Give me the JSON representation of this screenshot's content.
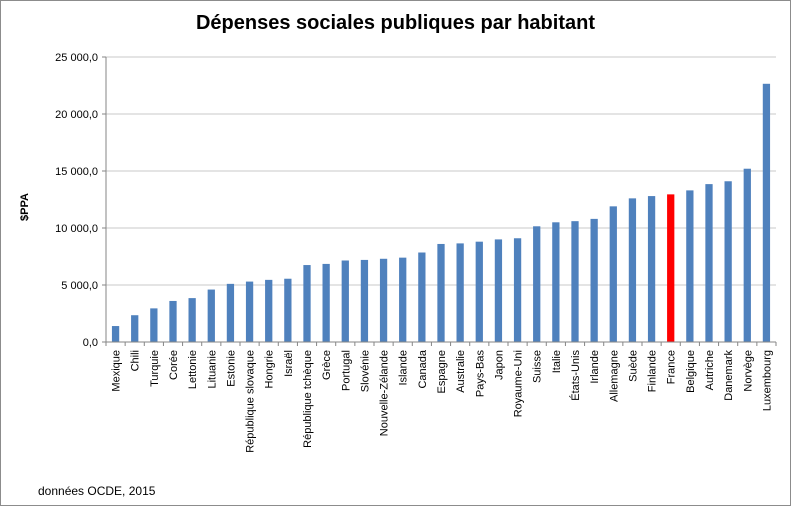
{
  "chart_data": {
    "type": "bar",
    "title": "Dépenses sociales publiques par habitant",
    "ylabel": "$PPA",
    "xlabel": "",
    "ylim": [
      0,
      25000
    ],
    "yticks": [
      0,
      5000,
      10000,
      15000,
      20000,
      25000
    ],
    "ytick_labels": [
      "0,0",
      "5 000,0",
      "10 000,0",
      "15 000,0",
      "20 000,0",
      "25 000,0"
    ],
    "grid": true,
    "legend": "none",
    "categories": [
      "Mexique",
      "Chili",
      "Turquie",
      "Corée",
      "Lettonie",
      "Lituanie",
      "Estonie",
      "République slovaque",
      "Hongrie",
      "Israël",
      "République tchèque",
      "Grèce",
      "Portugal",
      "Slovénie",
      "Nouvelle-Zélande",
      "Islande",
      "Canada",
      "Espagne",
      "Australie",
      "Pays-Bas",
      "Japon",
      "Royaume-Uni",
      "Suisse",
      "Italie",
      "États-Unis",
      "Irlande",
      "Allemagne",
      "Suède",
      "Finlande",
      "France",
      "Belgique",
      "Autriche",
      "Danemark",
      "Norvège",
      "Luxembourg"
    ],
    "values": [
      1400,
      2350,
      2950,
      3600,
      3850,
      4600,
      5100,
      5300,
      5450,
      5550,
      6750,
      6850,
      7150,
      7200,
      7300,
      7400,
      7850,
      8600,
      8650,
      8800,
      9000,
      9100,
      10150,
      10500,
      10600,
      10800,
      11900,
      12600,
      12800,
      12950,
      13300,
      13850,
      14100,
      15200,
      22650
    ],
    "bar_color": "#4f81bd",
    "highlight": {
      "category": "France",
      "color": "#ff0000"
    }
  },
  "footer": {
    "source": "données OCDE, 2015"
  }
}
